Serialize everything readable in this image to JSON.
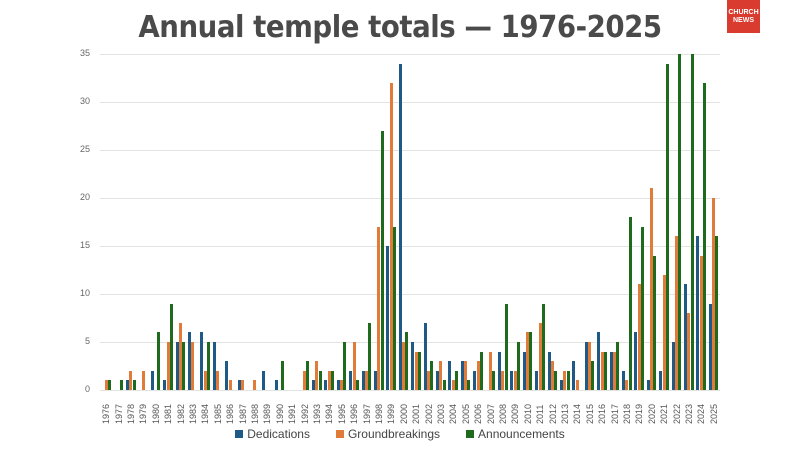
{
  "header": {
    "title": "Annual temple totals — 1976-2025",
    "logo_text": "CHURCH NEWS"
  },
  "colors": {
    "dedications": "#1f5a87",
    "groundbreakings": "#e07b39",
    "announcements": "#1e6b1e"
  },
  "legend": [
    "Dedications",
    "Groundbreakings",
    "Announcements"
  ],
  "chart_data": {
    "type": "bar",
    "title": "Annual temple totals — 1976-2025",
    "xlabel": "",
    "ylabel": "",
    "ylim": [
      0,
      35
    ],
    "yticks": [
      0,
      5,
      10,
      15,
      20,
      25,
      30,
      35
    ],
    "grid": true,
    "legend_position": "bottom",
    "categories": [
      "1976",
      "1977",
      "1978",
      "1979",
      "1980",
      "1981",
      "1982",
      "1983",
      "1984",
      "1985",
      "1986",
      "1987",
      "1988",
      "1989",
      "1990",
      "1991",
      "1992",
      "1993",
      "1994",
      "1995",
      "1996",
      "1997",
      "1998",
      "1999",
      "2000",
      "2001",
      "2002",
      "2003",
      "2004",
      "2005",
      "2006",
      "2007",
      "2008",
      "2009",
      "2010",
      "2011",
      "2012",
      "2013",
      "2014",
      "2015",
      "2016",
      "2017",
      "2018",
      "2019",
      "2020",
      "2021",
      "2022",
      "2023",
      "2024",
      "2025"
    ],
    "series": [
      {
        "name": "Dedications",
        "values": [
          0,
          0,
          1,
          0,
          2,
          1,
          5,
          6,
          6,
          5,
          3,
          1,
          0,
          2,
          1,
          0,
          0,
          1,
          1,
          1,
          2,
          2,
          2,
          15,
          34,
          5,
          7,
          2,
          3,
          3,
          2,
          0,
          4,
          2,
          4,
          2,
          4,
          1,
          3,
          5,
          6,
          4,
          2,
          6,
          1,
          2,
          5,
          11,
          16,
          9
        ]
      },
      {
        "name": "Groundbreakings",
        "values": [
          1,
          0,
          2,
          2,
          0,
          5,
          7,
          5,
          2,
          2,
          1,
          1,
          1,
          0,
          0,
          0,
          2,
          3,
          2,
          1,
          5,
          2,
          17,
          32,
          5,
          4,
          2,
          3,
          1,
          3,
          3,
          4,
          2,
          2,
          6,
          7,
          3,
          2,
          1,
          5,
          4,
          4,
          1,
          11,
          21,
          12,
          16,
          8,
          14,
          20
        ]
      },
      {
        "name": "Announcements",
        "values": [
          1,
          1,
          1,
          0,
          6,
          9,
          5,
          0,
          5,
          0,
          0,
          0,
          0,
          0,
          3,
          0,
          3,
          2,
          2,
          5,
          1,
          7,
          27,
          17,
          6,
          4,
          3,
          1,
          2,
          1,
          4,
          2,
          9,
          5,
          6,
          9,
          2,
          2,
          0,
          3,
          4,
          5,
          18,
          17,
          14,
          34,
          35,
          35,
          32,
          16
        ]
      }
    ]
  }
}
